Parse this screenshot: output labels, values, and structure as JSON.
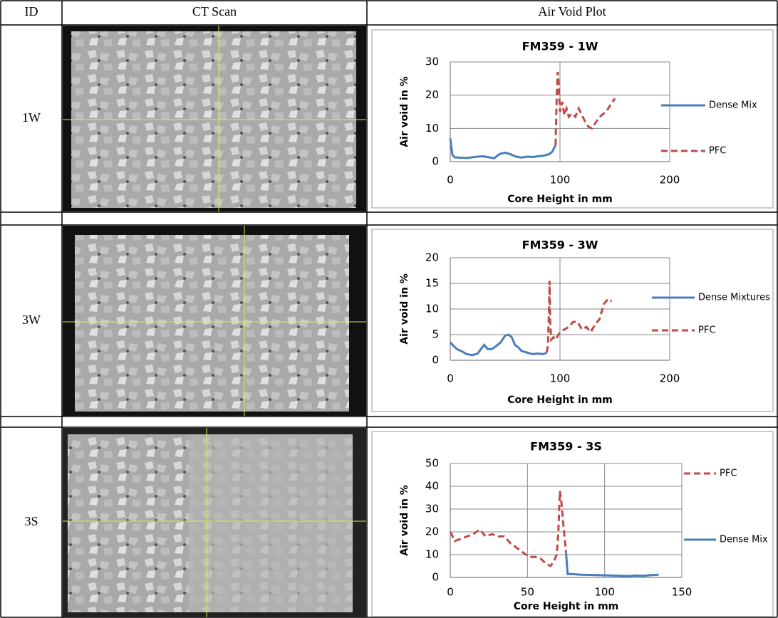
{
  "table": {
    "header": [
      "ID",
      "CT Scan",
      "Air Void Plot"
    ],
    "rows": [
      {
        "id": "1W"
      },
      {
        "id": "3W"
      },
      {
        "id": "3S"
      }
    ]
  },
  "chart_data": [
    {
      "type": "line",
      "title": "FM359 - 1W",
      "x_label": "Core Height in mm",
      "y_label": "Air void in %",
      "xlim": [
        0,
        200
      ],
      "xticks": [
        0,
        100,
        200
      ],
      "ylim": [
        0,
        30
      ],
      "yticks": [
        0,
        10,
        20,
        30
      ],
      "grid": true,
      "series": [
        {
          "name": "Dense Mix",
          "color": "#4a7ebb",
          "style": "solid",
          "x": [
            0,
            1,
            2,
            4,
            8,
            15,
            25,
            30,
            35,
            40,
            45,
            50,
            55,
            60,
            65,
            70,
            75,
            80,
            85,
            90,
            93,
            96
          ],
          "values": [
            7,
            4.5,
            2,
            1.3,
            1.2,
            1.1,
            1.5,
            1.6,
            1.3,
            1.0,
            2.3,
            2.7,
            2.2,
            1.5,
            1.2,
            1.5,
            1.4,
            1.6,
            1.8,
            2.2,
            3,
            5
          ]
        },
        {
          "name": "PFC",
          "color": "#be4b48",
          "style": "dashed",
          "x": [
            96,
            97,
            98,
            99,
            100,
            102,
            104,
            106,
            108,
            111,
            114,
            117,
            120,
            123,
            126,
            129,
            132,
            135,
            138,
            142,
            146,
            150
          ],
          "values": [
            5,
            20,
            27,
            22,
            15,
            18,
            14,
            16,
            13.5,
            14.5,
            13.5,
            16,
            14,
            12,
            10.5,
            10,
            11.5,
            13,
            14,
            15,
            17,
            19
          ]
        }
      ]
    },
    {
      "type": "line",
      "title": "FM359 - 3W",
      "x_label": "Core Height in mm",
      "y_label": "Air void in %",
      "xlim": [
        0,
        200
      ],
      "xticks": [
        0,
        100,
        200
      ],
      "ylim": [
        0,
        20
      ],
      "yticks": [
        0,
        5,
        10,
        15,
        20
      ],
      "grid": true,
      "series": [
        {
          "name": "Dense Mixtures",
          "color": "#4a7ebb",
          "style": "solid",
          "x": [
            0,
            3,
            6,
            10,
            15,
            20,
            25,
            28,
            31,
            34,
            38,
            42,
            46,
            50,
            53,
            56,
            59,
            62,
            65,
            70,
            75,
            80,
            85,
            88
          ],
          "values": [
            3.5,
            2.8,
            2.2,
            1.8,
            1.2,
            1,
            1.3,
            2.2,
            3,
            2.2,
            2.2,
            2.8,
            3.5,
            4.8,
            5,
            4.5,
            3,
            2.5,
            1.8,
            1.5,
            1.2,
            1.3,
            1.2,
            1.5
          ]
        },
        {
          "name": "PFC",
          "color": "#be4b48",
          "style": "dashed",
          "x": [
            88,
            89,
            90,
            90.5,
            91,
            92,
            94,
            96,
            100,
            104,
            108,
            112,
            116,
            120,
            124,
            128,
            132,
            136,
            140,
            144,
            147
          ],
          "values": [
            1.5,
            3,
            10,
            15.5,
            8,
            4,
            4.5,
            4,
            5.5,
            6,
            6.5,
            7.5,
            7.5,
            6,
            6.5,
            5.5,
            7,
            8,
            11,
            12,
            11.5
          ]
        }
      ]
    },
    {
      "type": "line",
      "title": "FM359 - 3S",
      "x_label": "Core Height in mm",
      "y_label": "Air void in %",
      "xlim": [
        0,
        150
      ],
      "xticks": [
        0,
        50,
        100,
        150
      ],
      "ylim": [
        0,
        50
      ],
      "yticks": [
        0,
        10,
        20,
        30,
        40,
        50
      ],
      "grid": true,
      "series": [
        {
          "name": "PFC",
          "color": "#be4b48",
          "style": "dashed",
          "x": [
            0,
            3,
            7,
            11,
            15,
            19,
            23,
            27,
            31,
            35,
            39,
            43,
            47,
            51,
            55,
            59,
            62,
            65,
            67,
            69,
            70,
            71,
            72,
            73,
            74,
            75
          ],
          "values": [
            20,
            16,
            17,
            18,
            19,
            21,
            18,
            19,
            18,
            18,
            15,
            13,
            11,
            9,
            9,
            8,
            6,
            5,
            7,
            10,
            20,
            38,
            33,
            25,
            18,
            11
          ]
        },
        {
          "name": "Dense Mix",
          "color": "#4a7ebb",
          "style": "solid",
          "x": [
            75,
            76,
            78,
            85,
            95,
            105,
            115,
            120,
            125,
            130,
            135
          ],
          "values": [
            11,
            1.5,
            1.5,
            1.2,
            1,
            0.8,
            0.6,
            0.8,
            0.7,
            1,
            1.2
          ]
        }
      ]
    }
  ]
}
